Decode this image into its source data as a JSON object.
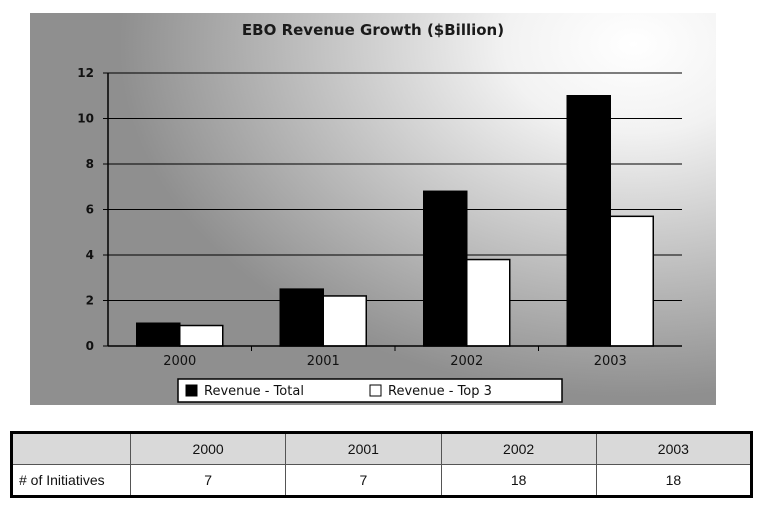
{
  "chart_data": {
    "type": "bar",
    "title": "EBO Revenue Growth ($Billion)",
    "categories": [
      "2000",
      "2001",
      "2002",
      "2003"
    ],
    "series": [
      {
        "name": "Revenue - Total",
        "values": [
          1.0,
          2.5,
          6.8,
          11.0
        ],
        "color": "#000000"
      },
      {
        "name": "Revenue - Top 3",
        "values": [
          0.9,
          2.2,
          3.8,
          5.7
        ],
        "color": "#ffffff"
      }
    ],
    "yticks": [
      "0",
      "2",
      "4",
      "6",
      "8",
      "10",
      "12"
    ],
    "ylim": [
      0,
      12
    ],
    "grid": true,
    "legend_position": "bottom"
  },
  "table": {
    "header": [
      "",
      "2000",
      "2001",
      "2002",
      "2003"
    ],
    "rows": [
      {
        "label": "# of Initiatives",
        "values": [
          "7",
          "7",
          "18",
          "18"
        ]
      }
    ]
  }
}
